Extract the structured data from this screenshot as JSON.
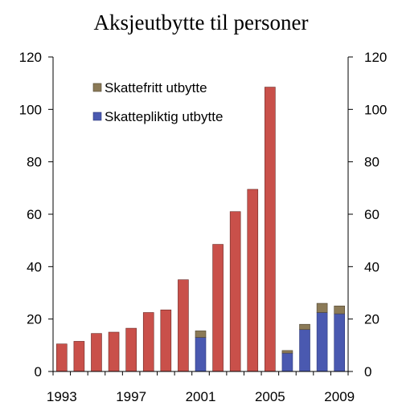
{
  "chart_data": {
    "type": "bar",
    "title": "Aksjeutbytte til personer",
    "xlabel": "",
    "ylabel": "",
    "ylim": [
      0,
      120
    ],
    "yticks": [
      0,
      20,
      40,
      60,
      80,
      100,
      120
    ],
    "grid": false,
    "legend_position": "top-left",
    "categories": [
      "1993",
      "1994",
      "1995",
      "1996",
      "1997",
      "1998",
      "1999",
      "2000",
      "2001",
      "2002",
      "2003",
      "2004",
      "2005",
      "2006",
      "2007",
      "2008",
      "2009"
    ],
    "x_tick_labels": [
      "1993",
      "",
      "",
      "",
      "1997",
      "",
      "",
      "",
      "2001",
      "",
      "",
      "",
      "2005",
      "",
      "",
      "",
      "2009"
    ],
    "series": [
      {
        "name": "Skattefritt utbytte",
        "color": "#8b7a57",
        "values": [
          null,
          null,
          null,
          null,
          null,
          null,
          null,
          null,
          2.5,
          null,
          null,
          null,
          null,
          1,
          2,
          3.5,
          3
        ]
      },
      {
        "name": "Skattepliktig utbytte",
        "color": "#4a59b0",
        "values": [
          null,
          null,
          null,
          null,
          null,
          null,
          null,
          null,
          13,
          null,
          null,
          null,
          null,
          7,
          16,
          22.5,
          22
        ]
      }
    ],
    "other_bars": {
      "color": "#c9504a",
      "values": [
        10.5,
        11.5,
        14.5,
        15,
        16.5,
        22.5,
        23.5,
        35,
        null,
        48.5,
        61,
        69.5,
        108.5,
        null,
        null,
        null,
        null
      ]
    }
  }
}
